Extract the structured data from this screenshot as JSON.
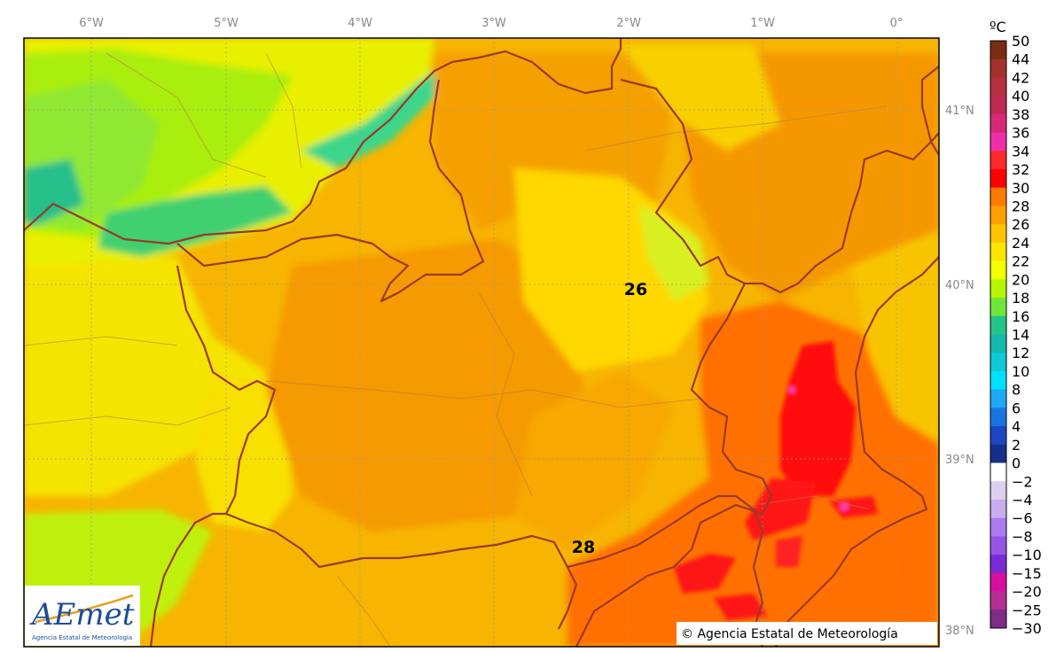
{
  "map": {
    "x_ticks": [
      "6°W",
      "5°W",
      "4°W",
      "3°W",
      "2°W",
      "1°W",
      "0°"
    ],
    "y_ticks": [
      "41°N",
      "40°N",
      "39°N",
      "38°N"
    ],
    "values": [
      "26",
      "28"
    ],
    "copyright": "© Agencia Estatal de Meteorología",
    "logo": {
      "text": "AEmet",
      "subtitle": "Agencia Estatal de Meteorología"
    }
  },
  "colorbar": {
    "unit": "ºC",
    "labels": [
      "50",
      "44",
      "42",
      "40",
      "38",
      "36",
      "34",
      "32",
      "30",
      "28",
      "26",
      "24",
      "22",
      "20",
      "18",
      "16",
      "14",
      "12",
      "10",
      "8",
      "6",
      "4",
      "2",
      "0",
      "−2",
      "−4",
      "−6",
      "−8",
      "−10",
      "−15",
      "−20",
      "−25",
      "−30"
    ],
    "colors": [
      "#7a2e10",
      "#a3322a",
      "#b23040",
      "#c02a55",
      "#d52a75",
      "#ee30a8",
      "#ff2a2a",
      "#ff0000",
      "#ff7a00",
      "#ffa000",
      "#ffc400",
      "#ffe400",
      "#f2ff00",
      "#b6f500",
      "#6ee63a",
      "#23c48a",
      "#15b9ad",
      "#10c8d6",
      "#00e0ff",
      "#1ea8f5",
      "#1a74e0",
      "#1d46c2",
      "#172e8a",
      "#ffffff",
      "#dcd0ec",
      "#c7aef0",
      "#a97af0",
      "#9755e6",
      "#7a2bd6",
      "#d60fa0",
      "#b52e92",
      "#7d2c87"
    ]
  }
}
